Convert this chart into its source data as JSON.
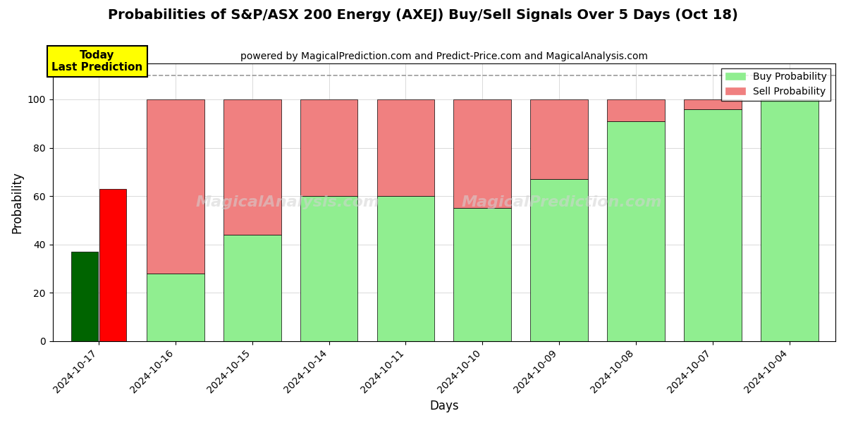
{
  "title": "Probabilities of S&P/ASX 200 Energy (AXEJ) Buy/Sell Signals Over 5 Days (Oct 18)",
  "subtitle": "powered by MagicalPrediction.com and Predict-Price.com and MagicalAnalysis.com",
  "xlabel": "Days",
  "ylabel": "Probability",
  "dates": [
    "2024-10-17",
    "2024-10-16",
    "2024-10-15",
    "2024-10-14",
    "2024-10-11",
    "2024-10-10",
    "2024-10-09",
    "2024-10-08",
    "2024-10-07",
    "2024-10-04"
  ],
  "buy_values": [
    37,
    28,
    44,
    60,
    60,
    55,
    67,
    91,
    96,
    100
  ],
  "sell_values": [
    63,
    72,
    56,
    40,
    40,
    45,
    33,
    9,
    4,
    0
  ],
  "today_buy": 37,
  "today_sell": 63,
  "today_label": "Today\nLast Prediction",
  "dashed_line_y": 110,
  "ylim_max": 115,
  "yticks": [
    0,
    20,
    40,
    60,
    80,
    100
  ],
  "bar_width": 0.75,
  "today_bar_width": 0.35,
  "buy_color_today": "#006400",
  "sell_color_today": "#FF0000",
  "buy_color_normal": "#90EE90",
  "sell_color_normal": "#F08080",
  "today_label_bg": "#FFFF00",
  "today_label_fontsize": 11,
  "title_fontsize": 14,
  "subtitle_fontsize": 10,
  "axis_label_fontsize": 12,
  "tick_fontsize": 10,
  "grid_color": "#AAAAAA",
  "fig_width": 12,
  "fig_height": 6,
  "watermark1": "MagicalAnalysis.com",
  "watermark2": "MagicalPrediction.com"
}
